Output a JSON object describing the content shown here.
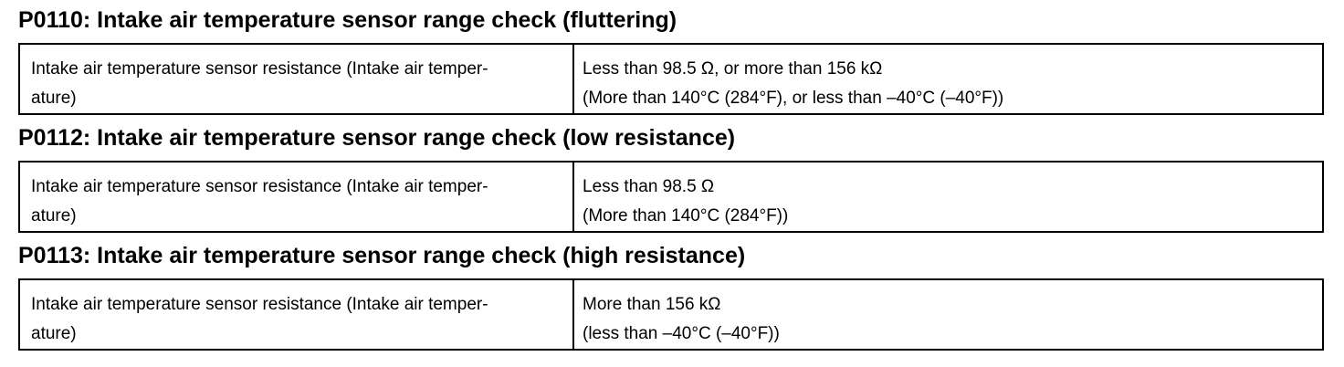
{
  "sections": [
    {
      "heading": "P0110: Intake air temperature sensor range check (fluttering)",
      "table": {
        "rows": [
          [
            [
              "Intake air temperature sensor resistance (Intake air temper-",
              "ature)"
            ],
            [
              "Less than 98.5 Ω, or more than 156 kΩ",
              "(More than 140°C (284°F), or less than –40°C (–40°F))"
            ]
          ]
        ]
      }
    },
    {
      "heading": "P0112: Intake air temperature sensor range check (low resistance)",
      "table": {
        "rows": [
          [
            [
              "Intake air temperature sensor resistance (Intake air temper-",
              "ature)"
            ],
            [
              "Less than 98.5 Ω",
              "(More than 140°C (284°F))"
            ]
          ]
        ]
      }
    },
    {
      "heading": "P0113: Intake air temperature sensor range check (high resistance)",
      "table": {
        "rows": [
          [
            [
              "Intake air temperature sensor resistance (Intake air temper-",
              "ature)"
            ],
            [
              "More than 156 kΩ",
              "(less than –40°C (–40°F))"
            ]
          ]
        ]
      }
    }
  ]
}
